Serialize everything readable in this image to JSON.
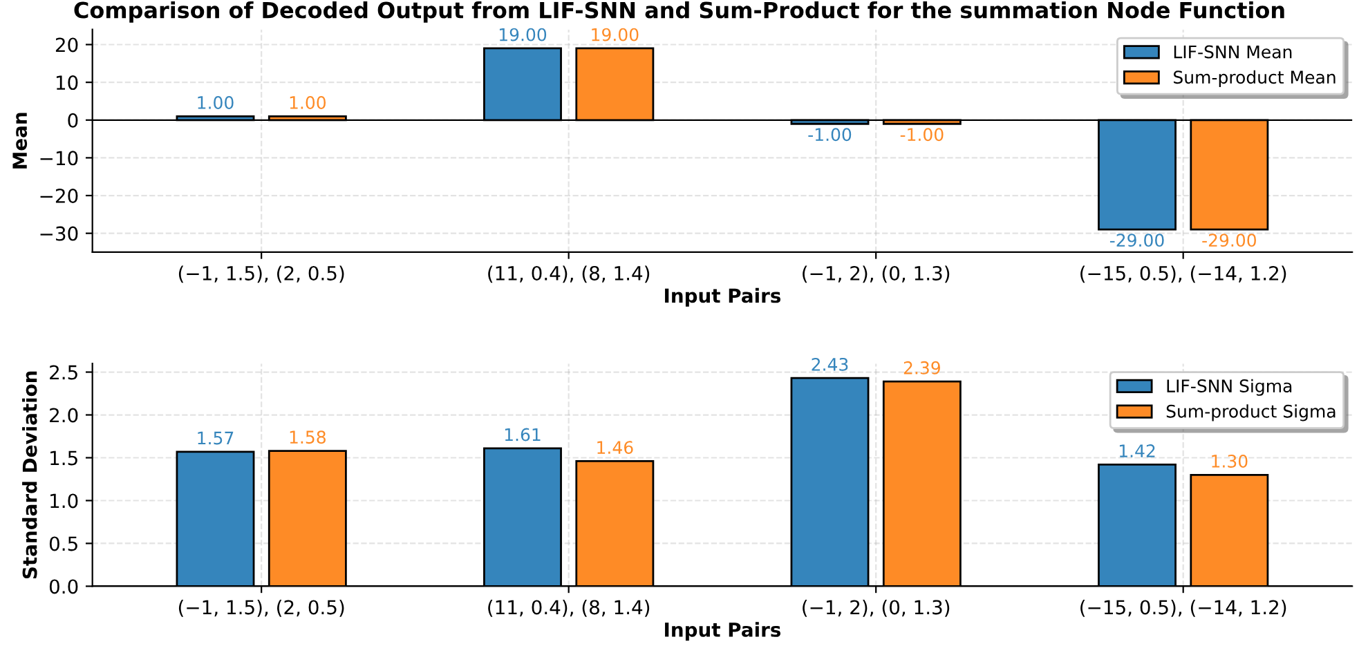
{
  "chart_data": [
    {
      "type": "bar",
      "title": "Comparison of Decoded Output from LIF-SNN and Sum-Product for the summation Node Function",
      "xlabel": "Input Pairs",
      "ylabel": "Mean",
      "categories": [
        "(−1, 1.5), (2, 0.5)",
        "(11, 0.4), (8, 1.4)",
        "(−1, 2), (0, 1.3)",
        "(−15, 0.5), (−14, 1.2)"
      ],
      "series": [
        {
          "name": "LIF-SNN Mean",
          "color": "#3585bc",
          "values": [
            1,
            19,
            -1,
            -29
          ],
          "value_labels": [
            "1.00",
            "19.00",
            "-1.00",
            "-29.00"
          ]
        },
        {
          "name": "Sum-product Mean",
          "color": "#fe8b26",
          "values": [
            1,
            19,
            -1,
            -29
          ],
          "value_labels": [
            "1.00",
            "19.00",
            "-1.00",
            "-29.00"
          ]
        }
      ],
      "ylim": [
        -35,
        24
      ],
      "yticks": [
        {
          "value": -30,
          "label": "−30"
        },
        {
          "value": -20,
          "label": "−20"
        },
        {
          "value": -10,
          "label": "−10"
        },
        0,
        10,
        20
      ],
      "grid": true,
      "legend": "top right"
    },
    {
      "type": "bar",
      "xlabel": "Input Pairs",
      "ylabel": "Standard Deviation",
      "categories": [
        "(−1, 1.5), (2, 0.5)",
        "(11, 0.4), (8, 1.4)",
        "(−1, 2), (0, 1.3)",
        "(−15, 0.5), (−14, 1.2)"
      ],
      "series": [
        {
          "name": "LIF-SNN Sigma",
          "color": "#3585bc",
          "values": [
            1.57,
            1.61,
            2.43,
            1.42
          ],
          "value_labels": [
            "1.57",
            "1.61",
            "2.43",
            "1.42"
          ]
        },
        {
          "name": "Sum-product Sigma",
          "color": "#fe8b26",
          "values": [
            1.58,
            1.46,
            2.39,
            1.3
          ],
          "value_labels": [
            "1.58",
            "1.46",
            "2.39",
            "1.30"
          ]
        }
      ],
      "ylim": [
        0,
        2.6
      ],
      "yticks": [
        {
          "value": 0,
          "label": "0.0"
        },
        {
          "value": 0.5,
          "label": "0.5"
        },
        {
          "value": 1,
          "label": "1.0"
        },
        {
          "value": 1.5,
          "label": "1.5"
        },
        {
          "value": 2,
          "label": "2.0"
        },
        {
          "value": 2.5,
          "label": "2.5"
        }
      ],
      "grid": true,
      "legend": "top right"
    }
  ]
}
